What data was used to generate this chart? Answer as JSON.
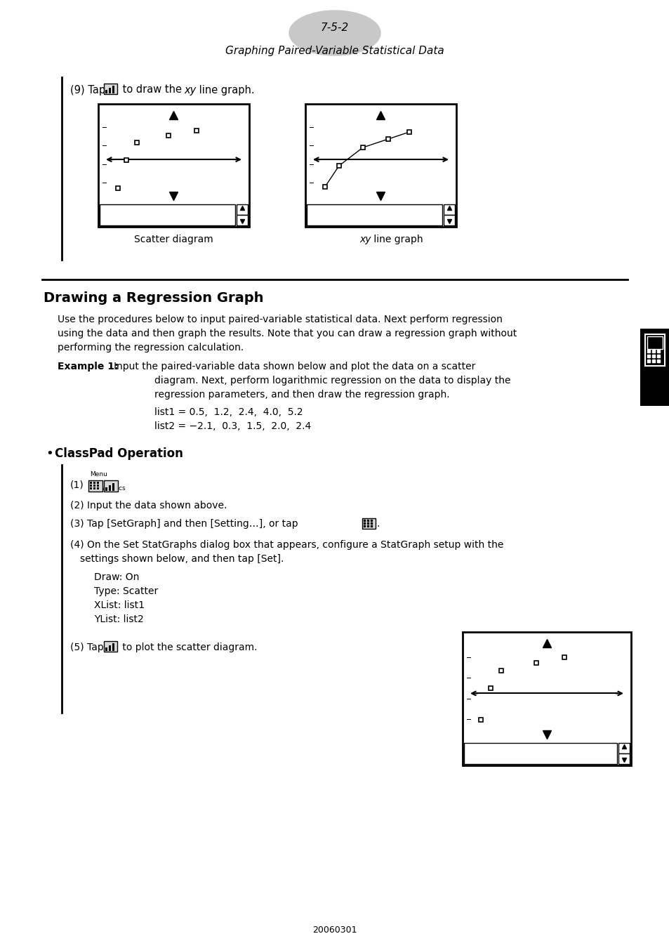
{
  "page_label": "7-5-2",
  "page_subtitle": "Graphing Paired-Variable Statistical Data",
  "bg_color": "#ffffff",
  "scatter_label": "Scatter diagram",
  "xy_label": "xy line graph",
  "section_title": "Drawing a Regression Graph",
  "para1_lines": [
    "Use the procedures below to input paired-variable statistical data. Next perform regression",
    "using the data and then graph the results. Note that you can draw a regression graph without",
    "performing the regression calculation."
  ],
  "list1_text": "list1 = 0.5,  1.2,  2.4,  4.0,  5.2",
  "list2_text": "list2 = −2.1,  0.3,  1.5,  2.0,  2.4",
  "step2_text": "(2) Input the data shown above.",
  "step3_text": "(3) Tap [SetGraph] and then [Setting…], or tap",
  "step4a_text": "(4) On the Set StatGraphs dialog box that appears, configure a StatGraph setup with the",
  "step4b_text": "settings shown below, and then tap [Set].",
  "draw_on": "Draw: On",
  "type_scatter": "Type: Scatter",
  "xlist": "XList: list1",
  "ylist": "YList: list2",
  "step5_text": "(5) Tap",
  "step5_suffix": "to plot the scatter diagram.",
  "footer_text": "20060301"
}
